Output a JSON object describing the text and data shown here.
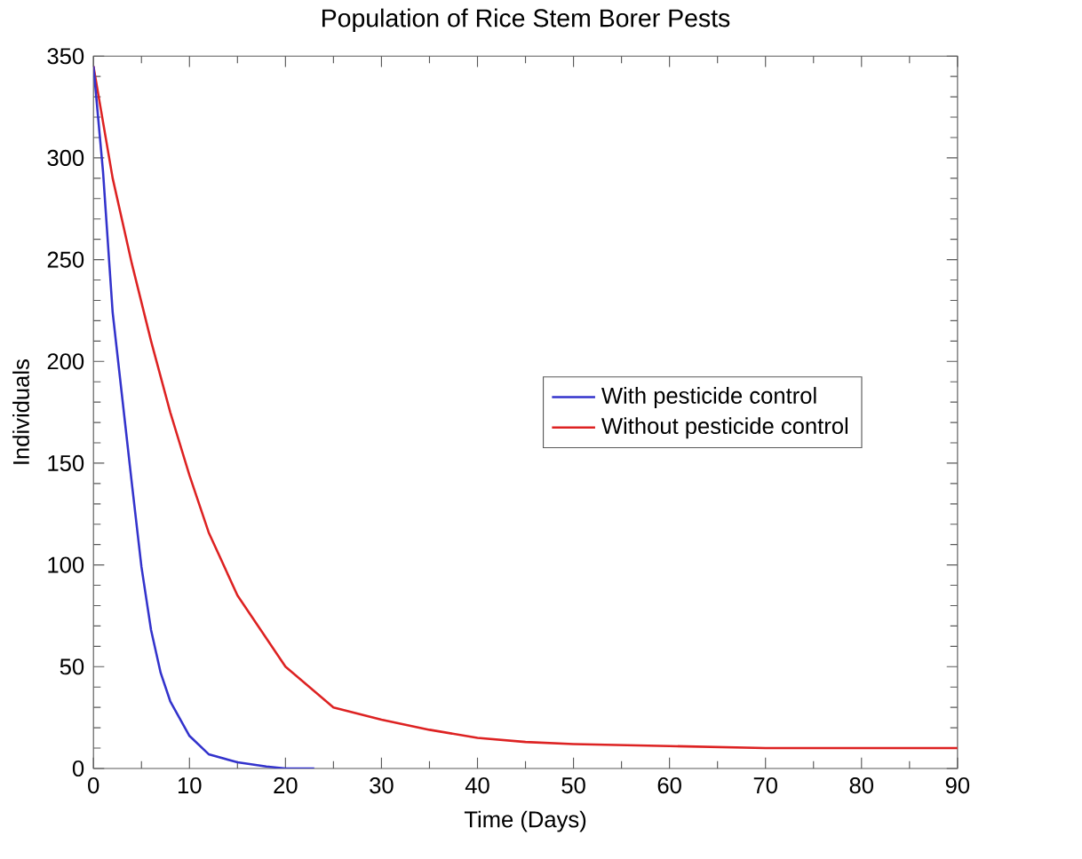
{
  "chart_data": {
    "type": "line",
    "title": "Population of Rice Stem Borer Pests",
    "xlabel": "Time (Days)",
    "ylabel": "Individuals",
    "xlim": [
      0,
      90
    ],
    "ylim": [
      0,
      350
    ],
    "xticks": [
      0,
      10,
      20,
      30,
      40,
      50,
      60,
      70,
      80,
      90
    ],
    "yticks": [
      0,
      50,
      100,
      150,
      200,
      250,
      300,
      350
    ],
    "grid": false,
    "legend": "right",
    "marker": "none",
    "line_style": "solid",
    "series": [
      {
        "name": "With pesticide control",
        "color": "#3333cc",
        "x": [
          0,
          1,
          2,
          3,
          4,
          5,
          6,
          7,
          8,
          10,
          12,
          15,
          18,
          20,
          23
        ],
        "values": [
          345,
          293,
          224,
          182,
          140,
          99,
          68,
          47,
          33,
          16,
          7,
          3,
          1,
          0,
          0
        ]
      },
      {
        "name": "Without pesticide control",
        "color": "#dd2222",
        "x": [
          0,
          2,
          4,
          6,
          8,
          10,
          12,
          15,
          20,
          25,
          30,
          35,
          40,
          45,
          50,
          60,
          70,
          90
        ],
        "values": [
          345,
          290,
          248,
          210,
          175,
          144,
          116,
          85,
          50,
          30,
          24,
          19,
          15,
          13,
          12,
          11,
          10,
          10
        ]
      }
    ]
  }
}
